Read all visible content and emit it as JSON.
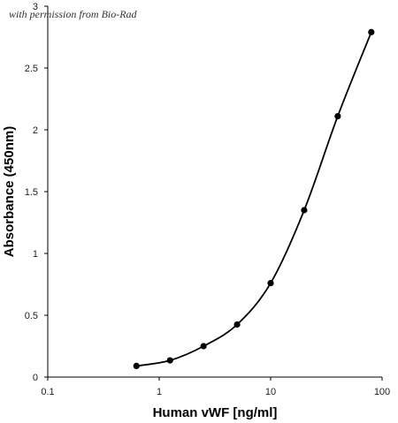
{
  "watermark": "with permission from Bio-Rad",
  "chart_data": {
    "type": "scatter",
    "title": "",
    "xlabel": "Human vWF [ng/ml]",
    "ylabel": "Absorbance (450nm)",
    "x_scale": "log",
    "xlim": [
      0.1,
      100
    ],
    "ylim": [
      0,
      3
    ],
    "x_ticks": [
      "0.1",
      "1",
      "10",
      "100"
    ],
    "y_ticks": [
      "0",
      "0.5",
      "1",
      "1.5",
      "2",
      "2.5",
      "3"
    ],
    "grid": false,
    "legend": "none",
    "series": [
      {
        "x": [
          0.625,
          1.25,
          2.5,
          5,
          10,
          20,
          40,
          80
        ],
        "y": [
          0.09,
          0.135,
          0.25,
          0.425,
          0.76,
          1.35,
          2.11,
          2.79
        ],
        "marker": "circle",
        "line": "smooth",
        "color": "#000000"
      }
    ]
  }
}
